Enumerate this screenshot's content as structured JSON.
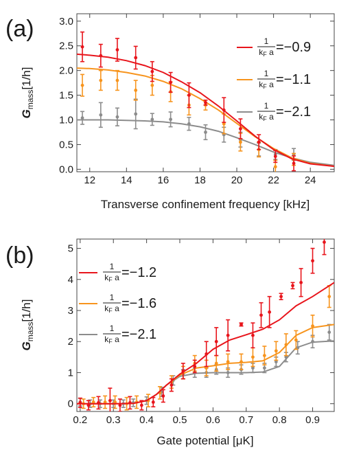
{
  "chart_data": [
    {
      "type": "scatter",
      "panel_label": "(a)",
      "xlabel": "Transverse confinement frequency [kHz]",
      "ylabel_main": "G",
      "ylabel_sub": "mass",
      "ylabel_unit": "[1/h]",
      "xlim": [
        11.3,
        25.3
      ],
      "ylim": [
        -0.05,
        3.15
      ],
      "xticks": [
        "12",
        "14",
        "16",
        "18",
        "20",
        "22",
        "24"
      ],
      "yticks": [
        "0.0",
        "0.5",
        "1.0",
        "1.5",
        "2.0",
        "2.5",
        "3.0"
      ],
      "legend_position": "right",
      "grid": false,
      "series": [
        {
          "label_num": "1",
          "label_den": "kF a",
          "label_value": "=−0.9",
          "color": "#e8141b",
          "points": [
            [
              11.6,
              2.48,
              0.3
            ],
            [
              12.6,
              2.3,
              0.23
            ],
            [
              13.5,
              2.42,
              0.23
            ],
            [
              14.5,
              2.26,
              0.23
            ],
            [
              15.4,
              1.98,
              0.2
            ],
            [
              16.4,
              1.76,
              0.2
            ],
            [
              17.4,
              1.5,
              0.25
            ],
            [
              18.3,
              1.35,
              0.05
            ],
            [
              19.3,
              1.2,
              0.25
            ],
            [
              20.2,
              0.82,
              0.2
            ],
            [
              21.2,
              0.55,
              0.15
            ],
            [
              22.1,
              0.26,
              0.12
            ],
            [
              23.1,
              0.12,
              0.15
            ]
          ],
          "fit": [
            [
              11.3,
              2.33
            ],
            [
              12,
              2.31
            ],
            [
              13,
              2.27
            ],
            [
              14,
              2.2
            ],
            [
              15,
              2.1
            ],
            [
              16,
              1.96
            ],
            [
              17,
              1.77
            ],
            [
              18,
              1.55
            ],
            [
              19,
              1.28
            ],
            [
              20,
              0.98
            ],
            [
              21,
              0.67
            ],
            [
              22,
              0.4
            ],
            [
              23,
              0.21
            ],
            [
              24,
              0.11
            ],
            [
              25.3,
              0.06
            ]
          ]
        },
        {
          "label_num": "1",
          "label_den": "kF a",
          "label_value": "=−1.1",
          "color": "#f7941d",
          "points": [
            [
              11.6,
              1.7,
              0.22
            ],
            [
              12.6,
              1.8,
              0.2
            ],
            [
              13.5,
              1.8,
              0.2
            ],
            [
              14.5,
              1.6,
              0.2
            ],
            [
              15.4,
              1.7,
              0.2
            ],
            [
              16.4,
              1.57,
              0.2
            ],
            [
              17.4,
              1.3,
              0.2
            ],
            [
              18.3,
              1.3,
              0.1
            ],
            [
              19.3,
              0.92,
              0.2
            ],
            [
              20.2,
              0.55,
              0.18
            ],
            [
              21.2,
              0.4,
              0.15
            ],
            [
              22.1,
              0.05,
              0.13
            ],
            [
              23.1,
              0.2,
              0.12
            ]
          ],
          "fit": [
            [
              11.3,
              2.05
            ],
            [
              12,
              2.04
            ],
            [
              13,
              2.01
            ],
            [
              14,
              1.96
            ],
            [
              15,
              1.89
            ],
            [
              16,
              1.78
            ],
            [
              17,
              1.63
            ],
            [
              18,
              1.43
            ],
            [
              19,
              1.2
            ],
            [
              20,
              0.93
            ],
            [
              21,
              0.66
            ],
            [
              22,
              0.42
            ],
            [
              23,
              0.23
            ],
            [
              24,
              0.12
            ],
            [
              25.3,
              0.06
            ]
          ]
        },
        {
          "label_num": "1",
          "label_den": "kF a",
          "label_value": "=−2.1",
          "color": "#8c8c8c",
          "points": [
            [
              11.6,
              1.04,
              0.13
            ],
            [
              12.6,
              1.1,
              0.25
            ],
            [
              13.5,
              1.06,
              0.18
            ],
            [
              14.5,
              1.12,
              0.3
            ],
            [
              15.4,
              1.01,
              0.12
            ],
            [
              16.4,
              1.01,
              0.15
            ],
            [
              17.4,
              0.92,
              0.13
            ],
            [
              18.3,
              0.75,
              0.15
            ],
            [
              19.3,
              0.7,
              0.15
            ],
            [
              20.2,
              0.6,
              0.15
            ],
            [
              21.2,
              0.4,
              0.13
            ],
            [
              22.1,
              0.3,
              0.1
            ],
            [
              23.1,
              0.3,
              0.12
            ]
          ],
          "fit": [
            [
              11.3,
              1.0
            ],
            [
              12,
              1.0
            ],
            [
              13,
              1.0
            ],
            [
              14,
              0.99
            ],
            [
              15,
              0.98
            ],
            [
              16,
              0.96
            ],
            [
              17,
              0.92
            ],
            [
              18,
              0.86
            ],
            [
              19,
              0.77
            ],
            [
              20,
              0.64
            ],
            [
              21,
              0.5
            ],
            [
              22,
              0.35
            ],
            [
              23,
              0.23
            ],
            [
              24,
              0.14
            ],
            [
              25.3,
              0.08
            ]
          ]
        }
      ]
    },
    {
      "type": "scatter",
      "panel_label": "(b)",
      "xlabel": "Gate potential [μK]",
      "ylabel_main": "G",
      "ylabel_sub": "mass",
      "ylabel_unit": "[1/h]",
      "xlim": [
        0.19,
        0.965
      ],
      "ylim": [
        -0.25,
        5.3
      ],
      "xticks": [
        "0.2",
        "0.3",
        "0.4",
        "0.5",
        "0.6",
        "0.7",
        "0.8",
        "0.9"
      ],
      "yticks": [
        "0",
        "1",
        "2",
        "3",
        "4",
        "5"
      ],
      "legend_position": "top-left",
      "grid": false,
      "series": [
        {
          "label_num": "1",
          "label_den": "kF a",
          "label_value": "=−1.2",
          "color": "#e8141b",
          "points": [
            [
              0.2,
              0.03,
              0.15
            ],
            [
              0.225,
              -0.05,
              0.15
            ],
            [
              0.255,
              0.03,
              0.2
            ],
            [
              0.29,
              0.1,
              0.4
            ],
            [
              0.32,
              -0.05,
              0.2
            ],
            [
              0.35,
              0.03,
              0.2
            ],
            [
              0.385,
              -0.05,
              0.15
            ],
            [
              0.42,
              0.05,
              0.15
            ],
            [
              0.45,
              0.25,
              0.2
            ],
            [
              0.475,
              0.6,
              0.2
            ],
            [
              0.51,
              1.05,
              0.25
            ],
            [
              0.545,
              1.2,
              0.2
            ],
            [
              0.58,
              1.6,
              0.4
            ],
            [
              0.61,
              2.0,
              0.45
            ],
            [
              0.645,
              2.2,
              0.5
            ],
            [
              0.685,
              2.55,
              0.05
            ],
            [
              0.72,
              2.2,
              0.4
            ],
            [
              0.745,
              2.85,
              0.4
            ],
            [
              0.77,
              2.95,
              0.5
            ],
            [
              0.805,
              3.45,
              0.1
            ],
            [
              0.84,
              3.8,
              0.1
            ],
            [
              0.865,
              3.9,
              0.45
            ],
            [
              0.9,
              4.6,
              0.4
            ],
            [
              0.935,
              5.2,
              0.4
            ]
          ],
          "fit": [
            [
              0.19,
              0.0
            ],
            [
              0.3,
              0.0
            ],
            [
              0.36,
              0.01
            ],
            [
              0.4,
              0.1
            ],
            [
              0.43,
              0.3
            ],
            [
              0.46,
              0.6
            ],
            [
              0.5,
              0.95
            ],
            [
              0.55,
              1.3
            ],
            [
              0.6,
              1.75
            ],
            [
              0.65,
              2.05
            ],
            [
              0.7,
              2.22
            ],
            [
              0.75,
              2.4
            ],
            [
              0.8,
              2.7
            ],
            [
              0.85,
              3.15
            ],
            [
              0.9,
              3.45
            ],
            [
              0.965,
              3.9
            ]
          ]
        },
        {
          "label_num": "1",
          "label_den": "kF a",
          "label_value": "=−1.6",
          "color": "#f7941d",
          "points": [
            [
              0.21,
              0.0,
              0.15
            ],
            [
              0.24,
              0.05,
              0.15
            ],
            [
              0.275,
              0.05,
              0.2
            ],
            [
              0.305,
              0.05,
              0.2
            ],
            [
              0.34,
              0.0,
              0.2
            ],
            [
              0.37,
              0.05,
              0.2
            ],
            [
              0.405,
              0.1,
              0.2
            ],
            [
              0.44,
              0.35,
              0.2
            ],
            [
              0.475,
              0.7,
              0.2
            ],
            [
              0.51,
              1.0,
              0.2
            ],
            [
              0.545,
              1.3,
              0.25
            ],
            [
              0.58,
              1.15,
              0.25
            ],
            [
              0.61,
              1.3,
              0.25
            ],
            [
              0.645,
              1.35,
              0.25
            ],
            [
              0.685,
              1.35,
              0.25
            ],
            [
              0.72,
              1.5,
              0.3
            ],
            [
              0.755,
              1.55,
              0.3
            ],
            [
              0.79,
              1.7,
              0.3
            ],
            [
              0.82,
              1.9,
              0.35
            ],
            [
              0.85,
              2.05,
              0.3
            ],
            [
              0.9,
              2.5,
              0.35
            ],
            [
              0.95,
              3.45,
              0.35
            ]
          ],
          "fit": [
            [
              0.19,
              0.0
            ],
            [
              0.3,
              0.0
            ],
            [
              0.36,
              0.01
            ],
            [
              0.4,
              0.1
            ],
            [
              0.43,
              0.3
            ],
            [
              0.46,
              0.6
            ],
            [
              0.5,
              0.92
            ],
            [
              0.55,
              1.15
            ],
            [
              0.6,
              1.22
            ],
            [
              0.65,
              1.3
            ],
            [
              0.7,
              1.33
            ],
            [
              0.75,
              1.38
            ],
            [
              0.8,
              1.65
            ],
            [
              0.85,
              2.2
            ],
            [
              0.9,
              2.45
            ],
            [
              0.965,
              2.55
            ]
          ]
        },
        {
          "label_num": "1",
          "label_den": "kF a",
          "label_value": "=−2.1",
          "color": "#8c8c8c",
          "points": [
            [
              0.2,
              0.05,
              0.12
            ],
            [
              0.23,
              0.0,
              0.12
            ],
            [
              0.26,
              0.0,
              0.12
            ],
            [
              0.3,
              0.0,
              0.12
            ],
            [
              0.33,
              0.0,
              0.12
            ],
            [
              0.36,
              0.03,
              0.12
            ],
            [
              0.4,
              0.1,
              0.12
            ],
            [
              0.445,
              0.38,
              0.15
            ],
            [
              0.48,
              0.75,
              0.15
            ],
            [
              0.51,
              0.95,
              0.15
            ],
            [
              0.545,
              1.0,
              0.15
            ],
            [
              0.58,
              1.0,
              0.15
            ],
            [
              0.61,
              1.1,
              0.15
            ],
            [
              0.645,
              1.0,
              0.15
            ],
            [
              0.685,
              1.1,
              0.15
            ],
            [
              0.72,
              1.15,
              0.15
            ],
            [
              0.755,
              1.15,
              0.15
            ],
            [
              0.79,
              1.35,
              0.15
            ],
            [
              0.82,
              1.5,
              0.15
            ],
            [
              0.855,
              1.8,
              0.2
            ],
            [
              0.9,
              2.0,
              0.2
            ],
            [
              0.95,
              2.3,
              0.25
            ]
          ],
          "fit": [
            [
              0.19,
              0.0
            ],
            [
              0.3,
              0.0
            ],
            [
              0.36,
              0.01
            ],
            [
              0.4,
              0.1
            ],
            [
              0.43,
              0.3
            ],
            [
              0.46,
              0.6
            ],
            [
              0.5,
              0.88
            ],
            [
              0.55,
              0.98
            ],
            [
              0.6,
              1.0
            ],
            [
              0.65,
              1.0
            ],
            [
              0.7,
              1.0
            ],
            [
              0.75,
              1.02
            ],
            [
              0.8,
              1.2
            ],
            [
              0.85,
              1.8
            ],
            [
              0.9,
              1.98
            ],
            [
              0.965,
              2.02
            ]
          ]
        }
      ]
    }
  ]
}
